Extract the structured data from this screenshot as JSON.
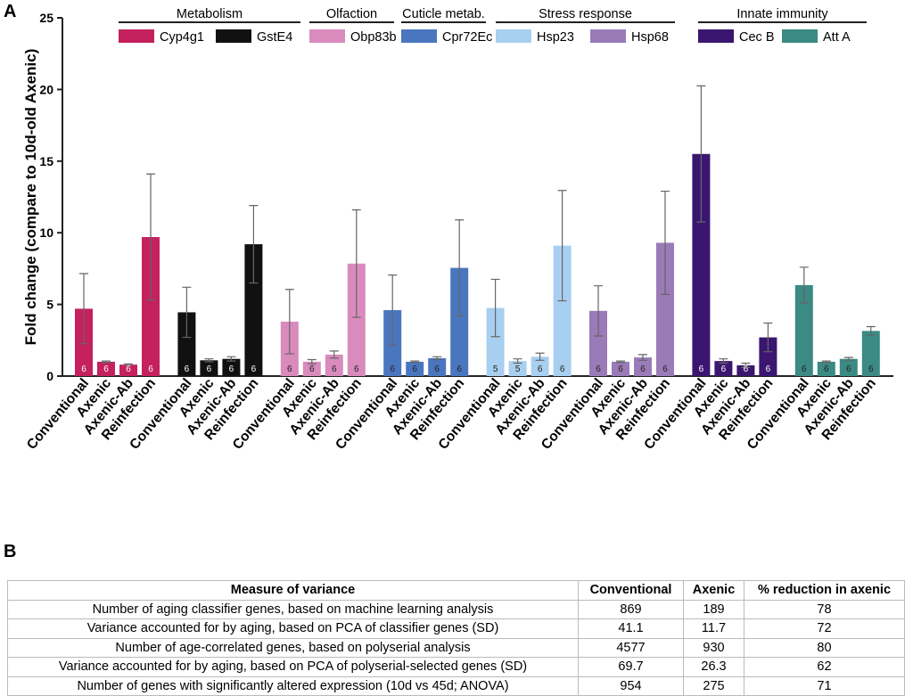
{
  "panel_labels": [
    "A",
    "B"
  ],
  "chart_data": {
    "type": "bar",
    "ylabel": "Fold change (compare to 10d-old Axenic)",
    "categories": [
      "Conventional",
      "Axenic",
      "Axenic-Ab",
      "Reinfection"
    ],
    "ylim": [
      0,
      25
    ],
    "yticks": [
      0,
      5,
      10,
      15,
      20,
      25
    ],
    "grid": false,
    "series": [
      {
        "name": "Cyp4g1",
        "group": "Metabolism",
        "color": "#c4215e",
        "values": [
          4.7,
          1.0,
          0.8,
          9.7
        ],
        "errors": [
          2.45,
          0.05,
          0.05,
          4.4
        ],
        "n": [
          6,
          6,
          6,
          6
        ]
      },
      {
        "name": "GstE4",
        "group": "Metabolism",
        "color": "#111111",
        "values": [
          4.45,
          1.1,
          1.2,
          9.2
        ],
        "errors": [
          1.75,
          0.1,
          0.15,
          2.7
        ],
        "n": [
          6,
          6,
          6,
          6
        ]
      },
      {
        "name": "Obp83b",
        "group": "Olfaction",
        "color": "#d98bbd",
        "values": [
          3.8,
          1.0,
          1.5,
          7.85
        ],
        "errors": [
          2.25,
          0.15,
          0.25,
          3.75
        ],
        "n": [
          6,
          6,
          6,
          6
        ]
      },
      {
        "name": "Cpr72Ec",
        "group": "Cuticle metab.",
        "color": "#4a76c0",
        "values": [
          4.6,
          1.0,
          1.25,
          7.55
        ],
        "errors": [
          2.45,
          0.05,
          0.1,
          3.35
        ],
        "n": [
          6,
          6,
          6,
          6
        ]
      },
      {
        "name": "Hsp23",
        "group": "Stress response",
        "color": "#a8cff0",
        "values": [
          4.75,
          1.05,
          1.35,
          9.1
        ],
        "errors": [
          2.0,
          0.15,
          0.25,
          3.85
        ],
        "n": [
          5,
          5,
          6,
          6
        ]
      },
      {
        "name": "Hsp68",
        "group": "Stress response",
        "color": "#9a7bb8",
        "values": [
          4.55,
          1.0,
          1.3,
          9.3
        ],
        "errors": [
          1.75,
          0.05,
          0.2,
          3.6
        ],
        "n": [
          6,
          6,
          6,
          6
        ]
      },
      {
        "name": "Cec B",
        "group": "Innate immunity",
        "color": "#3a1670",
        "values": [
          15.5,
          1.05,
          0.75,
          2.7
        ],
        "errors": [
          4.75,
          0.15,
          0.15,
          1.0
        ],
        "n": [
          6,
          6,
          6,
          6
        ]
      },
      {
        "name": "Att A",
        "group": "Innate immunity",
        "color": "#3b8a84",
        "values": [
          6.35,
          1.0,
          1.2,
          3.15
        ],
        "errors": [
          1.25,
          0.05,
          0.1,
          0.3
        ],
        "n": [
          6,
          6,
          6,
          6
        ]
      }
    ]
  },
  "table": {
    "header": [
      "Measure of variance",
      "Conventional",
      "Axenic",
      "% reduction in axenic"
    ],
    "rows": [
      [
        "Number of aging classifier genes, based on machine learning analysis",
        869,
        189,
        78
      ],
      [
        "Variance accounted for by aging, based on PCA of classifier genes (SD)",
        41.1,
        11.7,
        72
      ],
      [
        "Number of age-correlated genes, based on polyserial analysis",
        4577,
        930,
        80
      ],
      [
        "Variance accounted for by aging, based on PCA of polyserial-selected genes (SD)",
        69.7,
        26.3,
        62
      ],
      [
        "Number of genes with significantly altered expression (10d vs 45d; ANOVA)",
        954,
        275,
        71
      ]
    ]
  }
}
